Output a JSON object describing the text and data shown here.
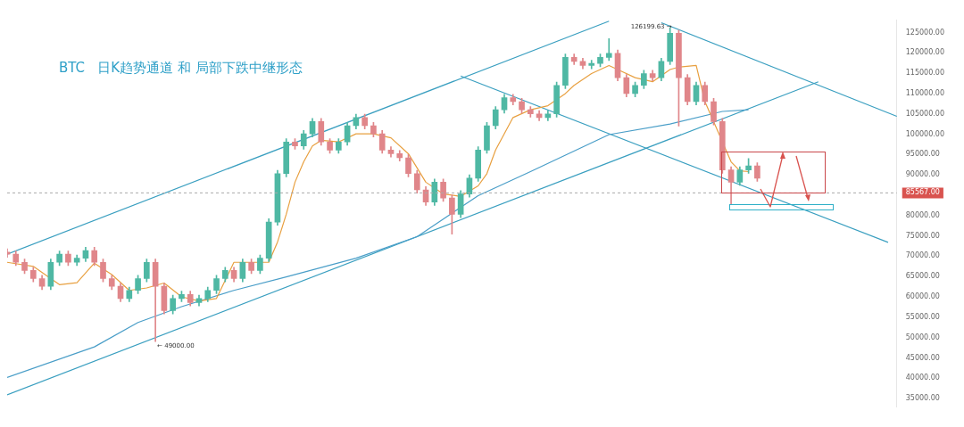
{
  "chart_data": {
    "type": "candlestick",
    "title": "BTC   日K趋势通道 和 局部下跌中继形态",
    "categories": [
      null,
      null,
      null,
      null,
      null,
      null,
      null,
      null,
      null,
      null,
      null,
      null,
      null,
      null,
      null,
      null,
      null,
      null,
      null,
      null,
      null,
      null,
      null,
      null,
      null,
      null,
      null,
      null,
      null,
      null,
      null,
      null,
      null,
      null,
      null,
      null,
      null,
      null,
      null,
      null,
      null,
      null,
      null,
      null,
      null,
      null,
      null,
      null,
      null,
      null,
      null,
      null,
      null,
      null,
      null,
      null,
      null,
      null,
      null,
      null,
      null,
      null,
      null,
      null,
      null,
      null,
      null,
      null,
      null,
      null,
      null,
      null,
      null,
      null,
      null,
      null,
      null,
      null,
      null,
      null,
      null,
      null,
      null,
      null,
      null,
      null,
      null,
      null,
      null,
      null,
      null,
      null,
      null,
      null,
      null,
      null,
      null,
      null,
      null,
      null,
      null,
      null,
      null
    ],
    "ohlc": [
      [
        71000,
        71800,
        69700,
        70500
      ],
      [
        70500,
        71300,
        67700,
        68500
      ],
      [
        68500,
        69300,
        65700,
        66500
      ],
      [
        66500,
        67300,
        63700,
        64500
      ],
      [
        64500,
        65300,
        61800,
        62600
      ],
      [
        62600,
        69300,
        61800,
        68500
      ],
      [
        68500,
        71300,
        67700,
        70500
      ],
      [
        70500,
        71300,
        67700,
        68500
      ],
      [
        68500,
        70300,
        67700,
        69500
      ],
      [
        69500,
        72200,
        68700,
        71400
      ],
      [
        71400,
        72200,
        67700,
        68500
      ],
      [
        68500,
        69300,
        63700,
        64500
      ],
      [
        64500,
        65300,
        61800,
        62600
      ],
      [
        62600,
        63400,
        58800,
        59600
      ],
      [
        59600,
        62400,
        58800,
        61600
      ],
      [
        61600,
        65300,
        60800,
        64500
      ],
      [
        64500,
        69300,
        63700,
        68500
      ],
      [
        68500,
        69300,
        49000,
        62600
      ],
      [
        62600,
        63400,
        55800,
        56600
      ],
      [
        56600,
        60400,
        55800,
        59600
      ],
      [
        59600,
        61400,
        58800,
        60600
      ],
      [
        60600,
        61400,
        57800,
        58600
      ],
      [
        58600,
        60400,
        57800,
        59600
      ],
      [
        59600,
        62400,
        58800,
        61600
      ],
      [
        61600,
        65300,
        60800,
        64500
      ],
      [
        64500,
        67300,
        63700,
        66500
      ],
      [
        66500,
        67300,
        63700,
        64500
      ],
      [
        64500,
        69300,
        63700,
        68500
      ],
      [
        68500,
        69300,
        65700,
        66500
      ],
      [
        66500,
        70300,
        65700,
        69500
      ],
      [
        69500,
        79200,
        68700,
        78400
      ],
      [
        78400,
        91100,
        77600,
        90300
      ],
      [
        90300,
        98900,
        89500,
        98100
      ],
      [
        98100,
        98900,
        96300,
        97100
      ],
      [
        97100,
        100900,
        96300,
        100100
      ],
      [
        100100,
        103900,
        99300,
        103100
      ],
      [
        103100,
        103900,
        97300,
        98100
      ],
      [
        98100,
        98900,
        95300,
        96100
      ],
      [
        96100,
        98900,
        95300,
        98100
      ],
      [
        98100,
        102900,
        97300,
        102100
      ],
      [
        102100,
        104900,
        101300,
        104100
      ],
      [
        104100,
        104900,
        101300,
        102100
      ],
      [
        102100,
        102900,
        99300,
        100100
      ],
      [
        100100,
        100900,
        95300,
        96100
      ],
      [
        96100,
        96900,
        94400,
        95200
      ],
      [
        95200,
        96000,
        93400,
        94200
      ],
      [
        94200,
        95000,
        89500,
        90300
      ],
      [
        90300,
        91100,
        85500,
        86300
      ],
      [
        86300,
        87100,
        82500,
        83300
      ],
      [
        83300,
        89000,
        82500,
        88200
      ],
      [
        88200,
        89000,
        83500,
        84300
      ],
      [
        84300,
        85100,
        75400,
        80300
      ],
      [
        80300,
        86100,
        79500,
        85300
      ],
      [
        85300,
        90000,
        84500,
        89200
      ],
      [
        89200,
        96900,
        88400,
        96100
      ],
      [
        96100,
        102900,
        95300,
        102100
      ],
      [
        102100,
        106800,
        101300,
        106000
      ],
      [
        106000,
        109800,
        105200,
        109000
      ],
      [
        109000,
        109800,
        107200,
        108000
      ],
      [
        108000,
        108800,
        105200,
        106000
      ],
      [
        106000,
        106800,
        104200,
        105000
      ],
      [
        105000,
        105800,
        103300,
        104100
      ],
      [
        104100,
        105800,
        103300,
        105000
      ],
      [
        105000,
        112800,
        104200,
        112000
      ],
      [
        112000,
        119700,
        111200,
        118900
      ],
      [
        118900,
        119700,
        117100,
        117900
      ],
      [
        117900,
        118700,
        116100,
        116900
      ],
      [
        116900,
        118200,
        116100,
        117400
      ],
      [
        117400,
        119700,
        116600,
        118900
      ],
      [
        118900,
        123500,
        118100,
        119900
      ],
      [
        119900,
        120700,
        113100,
        113900
      ],
      [
        113900,
        114700,
        109200,
        110000
      ],
      [
        110000,
        112800,
        109200,
        112000
      ],
      [
        112000,
        115700,
        111200,
        114900
      ],
      [
        114900,
        115700,
        113100,
        113900
      ],
      [
        113900,
        118700,
        113100,
        117900
      ],
      [
        117900,
        126199.63,
        117100,
        124800
      ],
      [
        124800,
        125600,
        102000,
        113900
      ],
      [
        113900,
        114700,
        107200,
        108000
      ],
      [
        108000,
        112800,
        107200,
        112000
      ],
      [
        112000,
        112800,
        107200,
        108000
      ],
      [
        108000,
        108800,
        102300,
        103100
      ],
      [
        103100,
        103900,
        90400,
        91200
      ],
      [
        91200,
        92000,
        82700,
        88200
      ],
      [
        88200,
        92000,
        87400,
        91200
      ],
      [
        91200,
        94000,
        90400,
        92200
      ],
      [
        92200,
        93000,
        88400,
        89200
      ],
      null,
      null,
      null,
      null,
      null,
      null,
      null,
      null,
      null,
      null,
      null,
      null,
      null,
      null,
      null,
      null
    ],
    "colors": [
      "#e0868a",
      "#e0868a",
      "#e0868a",
      "#e0868a",
      "#e0868a",
      "#4fb8a4",
      "#4fb8a4",
      "#e0868a",
      "#4fb8a4",
      "#4fb8a4",
      "#e0868a",
      "#e0868a",
      "#e0868a",
      "#e0868a",
      "#4fb8a4",
      "#4fb8a4",
      "#4fb8a4",
      "#e0868a",
      "#e0868a",
      "#4fb8a4",
      "#4fb8a4",
      "#e0868a",
      "#4fb8a4",
      "#4fb8a4",
      "#4fb8a4",
      "#4fb8a4",
      "#e0868a",
      "#4fb8a4",
      "#e0868a",
      "#4fb8a4",
      "#4fb8a4",
      "#4fb8a4",
      "#4fb8a4",
      "#e0868a",
      "#4fb8a4",
      "#4fb8a4",
      "#e0868a",
      "#e0868a",
      "#4fb8a4",
      "#4fb8a4",
      "#4fb8a4",
      "#e0868a",
      "#e0868a",
      "#e0868a",
      "#e0868a",
      "#e0868a",
      "#e0868a",
      "#e0868a",
      "#e0868a",
      "#4fb8a4",
      "#e0868a",
      "#e0868a",
      "#4fb8a4",
      "#4fb8a4",
      "#4fb8a4",
      "#4fb8a4",
      "#4fb8a4",
      "#4fb8a4",
      "#e0868a",
      "#e0868a",
      "#e0868a",
      "#e0868a",
      "#4fb8a4",
      "#4fb8a4",
      "#4fb8a4",
      "#e0868a",
      "#e0868a",
      "#4fb8a4",
      "#4fb8a4",
      "#4fb8a4",
      "#e0868a",
      "#e0868a",
      "#4fb8a4",
      "#4fb8a4",
      "#e0868a",
      "#4fb8a4",
      "#4fb8a4",
      "#e0868a",
      "#e0868a",
      "#4fb8a4",
      "#e0868a",
      "#e0868a",
      "#e0868a",
      "#e0868a",
      "#4fb8a4",
      "#4fb8a4",
      "#e0868a",
      null,
      null,
      null,
      null,
      null,
      null,
      null,
      null,
      null,
      null,
      null,
      null,
      null,
      null,
      null,
      null
    ],
    "series": [
      {
        "type": "line",
        "color": "#e8a040",
        "values": [
          68500,
          null,
          null,
          67500,
          null,
          64500,
          63000,
          null,
          63500,
          null,
          68300,
          null,
          65500,
          null,
          61600,
          null,
          62200,
          null,
          63400,
          null,
          60000,
          null,
          59000,
          null,
          59600,
          null,
          68500,
          null,
          null,
          null,
          68500,
          73500,
          80300,
          88200,
          93200,
          97100,
          98500,
          null,
          98100,
          null,
          100100,
          null,
          100100,
          null,
          99100,
          null,
          95200,
          null,
          88200,
          null,
          85300,
          null,
          84700,
          null,
          87300,
          90300,
          96100,
          null,
          104100,
          null,
          106000,
          null,
          107000,
          null,
          110000,
          112000,
          null,
          114900,
          null,
          116900,
          115900,
          null,
          113900,
          null,
          112900,
          null,
          115900,
          116500,
          null,
          116900,
          108000,
          103100,
          null,
          93200,
          91000,
          90800,
          null,
          null,
          null,
          null,
          null,
          null,
          null,
          null,
          null,
          null,
          null,
          null,
          null,
          null,
          null,
          null,
          null
        ]
      },
      {
        "type": "line",
        "color": "#4a9ec8",
        "values": [
          40200,
          null,
          null,
          null,
          null,
          null,
          null,
          null,
          null,
          null,
          47700,
          null,
          null,
          null,
          null,
          53700,
          null,
          null,
          null,
          null,
          57600,
          null,
          null,
          null,
          null,
          null,
          61600,
          null,
          null,
          null,
          null,
          null,
          64900,
          null,
          null,
          null,
          null,
          null,
          null,
          null,
          69500,
          null,
          null,
          null,
          null,
          null,
          null,
          74800,
          null,
          null,
          null,
          null,
          null,
          null,
          84900,
          null,
          null,
          null,
          null,
          null,
          90800,
          null,
          null,
          null,
          null,
          null,
          null,
          null,
          null,
          99900,
          null,
          null,
          null,
          null,
          null,
          null,
          102500,
          null,
          null,
          null,
          null,
          null,
          105600,
          null,
          null,
          106000,
          null,
          null,
          null,
          null,
          null,
          null,
          null,
          null,
          null,
          null,
          null,
          null,
          null,
          null,
          null,
          null,
          null
        ]
      },
      {
        "type": "line",
        "color": "#3a9fc0",
        "values": [
          70500,
          null,
          null,
          null,
          null,
          null,
          null,
          null,
          null,
          null,
          null,
          null,
          null,
          null,
          null,
          null,
          null,
          null,
          null,
          null,
          null,
          null,
          null,
          null,
          null,
          null,
          null,
          null,
          null,
          null,
          null,
          null,
          null,
          null,
          null,
          null,
          null,
          null,
          null,
          null,
          null,
          null,
          null,
          null,
          null,
          null,
          null,
          null,
          null,
          null,
          null,
          null,
          null,
          null,
          null,
          null,
          null,
          null,
          null,
          null,
          null,
          null,
          null,
          null,
          null,
          null,
          null,
          null,
          null,
          127800,
          null,
          null,
          null,
          null,
          null,
          null,
          null,
          null,
          null,
          null,
          null,
          null,
          null,
          null,
          null,
          null,
          null,
          null,
          null,
          null,
          null,
          null,
          null,
          null,
          null,
          null,
          null,
          null,
          null,
          null,
          null,
          null,
          null
        ]
      },
      {
        "type": "line",
        "color": "#3a9fc0",
        "values": [
          35900,
          null,
          null,
          null,
          null,
          null,
          null,
          null,
          null,
          null,
          null,
          null,
          null,
          null,
          null,
          null,
          null,
          null,
          null,
          null,
          null,
          null,
          null,
          null,
          null,
          null,
          null,
          null,
          null,
          null,
          null,
          null,
          null,
          null,
          null,
          null,
          null,
          null,
          null,
          null,
          null,
          null,
          null,
          null,
          null,
          null,
          null,
          null,
          null,
          null,
          null,
          null,
          null,
          null,
          null,
          null,
          null,
          null,
          null,
          null,
          null,
          null,
          null,
          null,
          null,
          null,
          null,
          null,
          null,
          null,
          null,
          null,
          null,
          null,
          null,
          null,
          null,
          null,
          null,
          null,
          null,
          null,
          null,
          null,
          null,
          null,
          null,
          null,
          null,
          null,
          null,
          null,
          null,
          112900,
          null,
          null,
          null,
          null,
          null,
          null,
          null,
          null,
          null
        ]
      },
      {
        "type": "line",
        "color": "#3a9fc0",
        "values": [
          null,
          null,
          null,
          null,
          null,
          null,
          null,
          null,
          null,
          null,
          null,
          null,
          null,
          null,
          null,
          null,
          null,
          null,
          null,
          null,
          null,
          null,
          null,
          null,
          null,
          null,
          null,
          null,
          null,
          null,
          null,
          null,
          null,
          null,
          null,
          null,
          null,
          null,
          null,
          null,
          null,
          null,
          null,
          null,
          null,
          null,
          null,
          null,
          null,
          null,
          null,
          null,
          114300,
          null,
          null,
          null,
          null,
          null,
          null,
          null,
          null,
          null,
          null,
          null,
          null,
          null,
          null,
          null,
          null,
          null,
          null,
          null,
          null,
          null,
          null,
          null,
          null,
          null,
          null,
          null,
          null,
          null,
          null,
          null,
          null,
          null,
          null,
          null,
          null,
          null,
          null,
          null,
          null,
          null,
          null,
          null,
          null,
          null,
          null,
          null,
          null,
          73400,
          null
        ]
      },
      {
        "type": "line",
        "color": "#3a9fc0",
        "values": [
          null,
          null,
          null,
          null,
          null,
          null,
          null,
          null,
          null,
          null,
          null,
          null,
          null,
          null,
          null,
          null,
          null,
          null,
          null,
          null,
          null,
          null,
          null,
          null,
          null,
          null,
          null,
          null,
          null,
          null,
          null,
          null,
          null,
          null,
          null,
          null,
          null,
          null,
          null,
          null,
          null,
          null,
          null,
          null,
          null,
          null,
          null,
          null,
          null,
          null,
          null,
          null,
          null,
          null,
          null,
          null,
          null,
          null,
          null,
          null,
          null,
          null,
          null,
          null,
          null,
          null,
          null,
          null,
          null,
          null,
          null,
          null,
          null,
          null,
          null,
          127400,
          null,
          null,
          null,
          null,
          null,
          null,
          null,
          null,
          null,
          null,
          null,
          null,
          null,
          null,
          null,
          null,
          null,
          null,
          null,
          null,
          null,
          null,
          null,
          null,
          null,
          null,
          104400
        ]
      }
    ],
    "ylim": [
      33000,
      128000
    ],
    "yticks": [
      {
        "value": 35000,
        "label": "35000.00"
      },
      {
        "value": 40000,
        "label": "40000.00"
      },
      {
        "value": 45000,
        "label": "45000.00"
      },
      {
        "value": 50000,
        "label": "50000.00"
      },
      {
        "value": 55000,
        "label": "55000.00"
      },
      {
        "value": 60000,
        "label": "60000.00"
      },
      {
        "value": 65000,
        "label": "65000.00"
      },
      {
        "value": 70000,
        "label": "70000.00"
      },
      {
        "value": 75000,
        "label": "75000.00"
      },
      {
        "value": 80000,
        "label": "80000.00"
      },
      {
        "value": 90000,
        "label": "90000.00"
      },
      {
        "value": 95000,
        "label": "95000.00"
      },
      {
        "value": 100000,
        "label": "100000.00"
      },
      {
        "value": 105000,
        "label": "105000.00"
      },
      {
        "value": 110000,
        "label": "110000.00"
      },
      {
        "value": 115000,
        "label": "115000.00"
      },
      {
        "value": 120000,
        "label": "120000.00"
      },
      {
        "value": 125000,
        "label": "125000.00"
      }
    ],
    "ref_lines": [
      {
        "axis": "y",
        "value": 85567,
        "label": "85567.00",
        "color": "#aaaaaa",
        "line_style": "dashed"
      }
    ],
    "annotations": [
      "126199.63 →",
      "← 49000.00"
    ],
    "grid": false,
    "legend": false,
    "tick_labels": "y",
    "marker": "none"
  }
}
